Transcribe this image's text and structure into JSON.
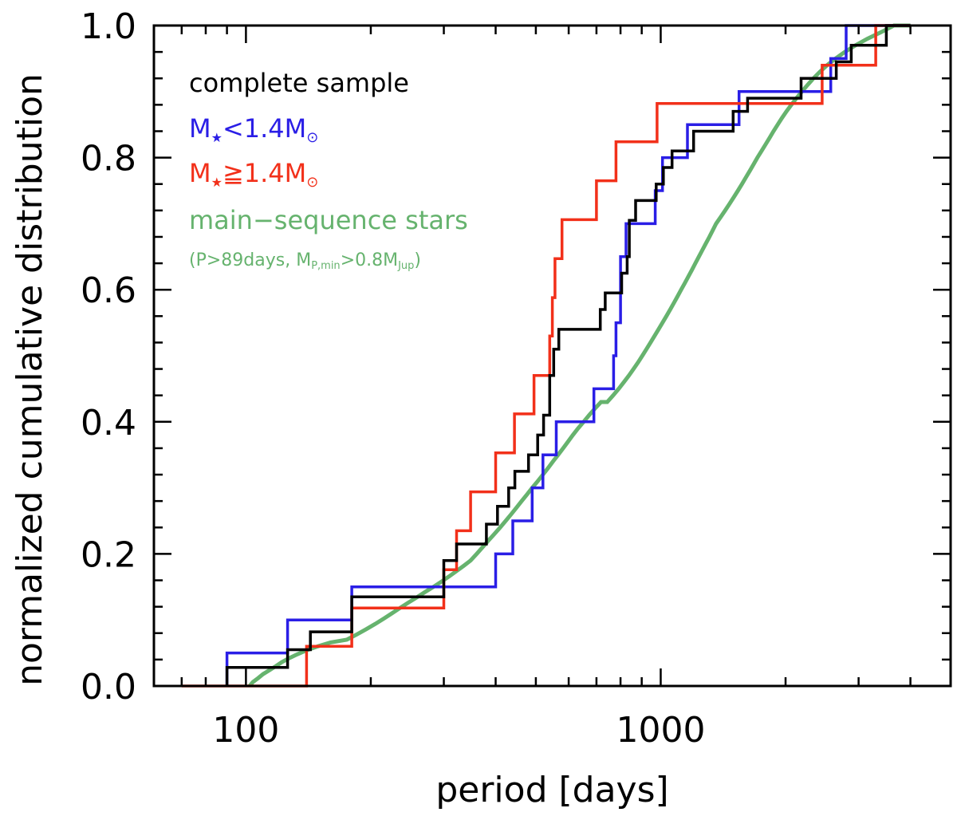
{
  "chart_data": {
    "type": "line",
    "step": true,
    "xscale": "log",
    "xlabel": "period [days]",
    "ylabel": "normalized cumulative distribution",
    "xlim": [
      60,
      5000
    ],
    "ylim": [
      0.0,
      1.0
    ],
    "x_ticks": [
      {
        "value": 100,
        "label": "100"
      },
      {
        "value": 1000,
        "label": "1000"
      }
    ],
    "y_ticks": [
      {
        "value": 0.0,
        "label": "0.0"
      },
      {
        "value": 0.2,
        "label": "0.2"
      },
      {
        "value": 0.4,
        "label": "0.4"
      },
      {
        "value": 0.6,
        "label": "0.6"
      },
      {
        "value": 0.8,
        "label": "0.8"
      },
      {
        "value": 1.0,
        "label": "1.0"
      }
    ],
    "legend": [
      {
        "key": "complete",
        "text": "complete sample",
        "color": "#000000"
      },
      {
        "key": "low_mass",
        "text": "M★<1.4M⊙",
        "color": "#2a1ee6"
      },
      {
        "key": "high_mass",
        "text": "M★≧1.4M⊙",
        "color": "#f2301a"
      },
      {
        "key": "main_seq",
        "text": "main−sequence stars",
        "color": "#66b36e"
      },
      {
        "key": "main_seq_note",
        "text": "(P>89days, M_P,min>0.8M_Jup)",
        "color": "#66b36e"
      }
    ],
    "series": [
      {
        "name": "complete sample",
        "color": "#000000",
        "width": 3.5,
        "points": [
          [
            90,
            0.0
          ],
          [
            90,
            0.028
          ],
          [
            126,
            0.028
          ],
          [
            126,
            0.055
          ],
          [
            143,
            0.055
          ],
          [
            143,
            0.082
          ],
          [
            180,
            0.082
          ],
          [
            180,
            0.135
          ],
          [
            300,
            0.135
          ],
          [
            300,
            0.19
          ],
          [
            322,
            0.19
          ],
          [
            322,
            0.215
          ],
          [
            380,
            0.215
          ],
          [
            380,
            0.245
          ],
          [
            404,
            0.245
          ],
          [
            404,
            0.272
          ],
          [
            430,
            0.272
          ],
          [
            430,
            0.3
          ],
          [
            445,
            0.3
          ],
          [
            445,
            0.325
          ],
          [
            480,
            0.325
          ],
          [
            480,
            0.35
          ],
          [
            505,
            0.35
          ],
          [
            505,
            0.38
          ],
          [
            522,
            0.38
          ],
          [
            522,
            0.41
          ],
          [
            540,
            0.41
          ],
          [
            540,
            0.47
          ],
          [
            552,
            0.47
          ],
          [
            552,
            0.51
          ],
          [
            568,
            0.51
          ],
          [
            568,
            0.54
          ],
          [
            715,
            0.54
          ],
          [
            715,
            0.57
          ],
          [
            735,
            0.57
          ],
          [
            735,
            0.595
          ],
          [
            805,
            0.595
          ],
          [
            805,
            0.625
          ],
          [
            830,
            0.625
          ],
          [
            830,
            0.65
          ],
          [
            840,
            0.65
          ],
          [
            840,
            0.705
          ],
          [
            870,
            0.705
          ],
          [
            870,
            0.735
          ],
          [
            975,
            0.735
          ],
          [
            975,
            0.76
          ],
          [
            1015,
            0.76
          ],
          [
            1015,
            0.785
          ],
          [
            1065,
            0.785
          ],
          [
            1065,
            0.81
          ],
          [
            1200,
            0.81
          ],
          [
            1200,
            0.84
          ],
          [
            1495,
            0.84
          ],
          [
            1495,
            0.87
          ],
          [
            1620,
            0.87
          ],
          [
            1620,
            0.89
          ],
          [
            2180,
            0.89
          ],
          [
            2180,
            0.92
          ],
          [
            2650,
            0.92
          ],
          [
            2650,
            0.945
          ],
          [
            2880,
            0.945
          ],
          [
            2880,
            0.97
          ],
          [
            3500,
            0.97
          ],
          [
            3500,
            1.0
          ],
          [
            4000,
            1.0
          ]
        ]
      },
      {
        "name": "M★<1.4M⊙",
        "color": "#2a1ee6",
        "width": 3.5,
        "points": [
          [
            90,
            0.0
          ],
          [
            90,
            0.05
          ],
          [
            126,
            0.05
          ],
          [
            126,
            0.1
          ],
          [
            180,
            0.1
          ],
          [
            180,
            0.15
          ],
          [
            400,
            0.15
          ],
          [
            400,
            0.2
          ],
          [
            440,
            0.2
          ],
          [
            440,
            0.25
          ],
          [
            490,
            0.25
          ],
          [
            490,
            0.3
          ],
          [
            520,
            0.3
          ],
          [
            520,
            0.35
          ],
          [
            560,
            0.35
          ],
          [
            560,
            0.4
          ],
          [
            690,
            0.4
          ],
          [
            690,
            0.45
          ],
          [
            770,
            0.45
          ],
          [
            770,
            0.5
          ],
          [
            780,
            0.5
          ],
          [
            780,
            0.55
          ],
          [
            800,
            0.55
          ],
          [
            800,
            0.65
          ],
          [
            825,
            0.65
          ],
          [
            825,
            0.7
          ],
          [
            970,
            0.7
          ],
          [
            970,
            0.75
          ],
          [
            1010,
            0.75
          ],
          [
            1010,
            0.8
          ],
          [
            1160,
            0.8
          ],
          [
            1160,
            0.85
          ],
          [
            1545,
            0.85
          ],
          [
            1545,
            0.9
          ],
          [
            2570,
            0.9
          ],
          [
            2570,
            0.95
          ],
          [
            2800,
            0.95
          ],
          [
            2800,
            1.0
          ],
          [
            4000,
            1.0
          ]
        ]
      },
      {
        "name": "M★≧1.4M⊙",
        "color": "#f2301a",
        "width": 3.5,
        "points": [
          [
            70,
            0.0
          ],
          [
            140,
            0.0
          ],
          [
            140,
            0.06
          ],
          [
            180,
            0.06
          ],
          [
            180,
            0.118
          ],
          [
            300,
            0.118
          ],
          [
            300,
            0.176
          ],
          [
            322,
            0.176
          ],
          [
            322,
            0.235
          ],
          [
            348,
            0.235
          ],
          [
            348,
            0.294
          ],
          [
            400,
            0.294
          ],
          [
            400,
            0.353
          ],
          [
            444,
            0.353
          ],
          [
            444,
            0.412
          ],
          [
            495,
            0.412
          ],
          [
            495,
            0.47
          ],
          [
            540,
            0.47
          ],
          [
            540,
            0.53
          ],
          [
            548,
            0.53
          ],
          [
            548,
            0.588
          ],
          [
            556,
            0.588
          ],
          [
            556,
            0.647
          ],
          [
            578,
            0.647
          ],
          [
            578,
            0.706
          ],
          [
            700,
            0.706
          ],
          [
            700,
            0.765
          ],
          [
            780,
            0.765
          ],
          [
            780,
            0.824
          ],
          [
            980,
            0.824
          ],
          [
            980,
            0.882
          ],
          [
            2450,
            0.882
          ],
          [
            2450,
            0.94
          ],
          [
            3300,
            0.94
          ],
          [
            3300,
            1.0
          ],
          [
            4000,
            1.0
          ]
        ]
      },
      {
        "name": "main−sequence stars",
        "color": "#66b36e",
        "width": 5,
        "points": [
          [
            102,
            0
          ],
          [
            104,
            0.006
          ],
          [
            107,
            0.012
          ],
          [
            110,
            0.018
          ],
          [
            114,
            0.024
          ],
          [
            118,
            0.03
          ],
          [
            122,
            0.036
          ],
          [
            127,
            0.042
          ],
          [
            133,
            0.048
          ],
          [
            140,
            0.054
          ],
          [
            149,
            0.06
          ],
          [
            160,
            0.066
          ],
          [
            175,
            0.07
          ],
          [
            185,
            0.078
          ],
          [
            195,
            0.086
          ],
          [
            205,
            0.094
          ],
          [
            215,
            0.102
          ],
          [
            225,
            0.11
          ],
          [
            235,
            0.118
          ],
          [
            246,
            0.126
          ],
          [
            258,
            0.134
          ],
          [
            270,
            0.142
          ],
          [
            283,
            0.15
          ],
          [
            296,
            0.158
          ],
          [
            309,
            0.166
          ],
          [
            322,
            0.174
          ],
          [
            335,
            0.182
          ],
          [
            348,
            0.19
          ],
          [
            360,
            0.2
          ],
          [
            372,
            0.21
          ],
          [
            384,
            0.22
          ],
          [
            397,
            0.23
          ],
          [
            410,
            0.24
          ],
          [
            423,
            0.25
          ],
          [
            436,
            0.26
          ],
          [
            449,
            0.27
          ],
          [
            462,
            0.28
          ],
          [
            476,
            0.29
          ],
          [
            490,
            0.3
          ],
          [
            505,
            0.31
          ],
          [
            520,
            0.32
          ],
          [
            535,
            0.33
          ],
          [
            550,
            0.34
          ],
          [
            566,
            0.35
          ],
          [
            582,
            0.36
          ],
          [
            598,
            0.37
          ],
          [
            614,
            0.38
          ],
          [
            632,
            0.39
          ],
          [
            652,
            0.4
          ],
          [
            672,
            0.41
          ],
          [
            694,
            0.42
          ],
          [
            718,
            0.43
          ],
          [
            743,
            0.43
          ],
          [
            768,
            0.44
          ],
          [
            792,
            0.45
          ],
          [
            815,
            0.46
          ],
          [
            838,
            0.47
          ],
          [
            860,
            0.48
          ],
          [
            882,
            0.49
          ],
          [
            903,
            0.5
          ],
          [
            924,
            0.51
          ],
          [
            945,
            0.52
          ],
          [
            966,
            0.53
          ],
          [
            988,
            0.54
          ],
          [
            1010,
            0.55
          ],
          [
            1032,
            0.56
          ],
          [
            1054,
            0.57
          ],
          [
            1076,
            0.58
          ],
          [
            1098,
            0.59
          ],
          [
            1120,
            0.6
          ],
          [
            1143,
            0.61
          ],
          [
            1166,
            0.62
          ],
          [
            1189,
            0.63
          ],
          [
            1212,
            0.64
          ],
          [
            1236,
            0.65
          ],
          [
            1260,
            0.66
          ],
          [
            1285,
            0.67
          ],
          [
            1310,
            0.68
          ],
          [
            1335,
            0.69
          ],
          [
            1360,
            0.7
          ],
          [
            1395,
            0.71
          ],
          [
            1430,
            0.72
          ],
          [
            1465,
            0.73
          ],
          [
            1500,
            0.74
          ],
          [
            1535,
            0.75
          ],
          [
            1570,
            0.76
          ],
          [
            1605,
            0.77
          ],
          [
            1640,
            0.78
          ],
          [
            1675,
            0.79
          ],
          [
            1710,
            0.8
          ],
          [
            1750,
            0.81
          ],
          [
            1790,
            0.82
          ],
          [
            1830,
            0.83
          ],
          [
            1870,
            0.84
          ],
          [
            1915,
            0.85
          ],
          [
            1960,
            0.86
          ],
          [
            2010,
            0.87
          ],
          [
            2065,
            0.88
          ],
          [
            2125,
            0.89
          ],
          [
            2190,
            0.9
          ],
          [
            2260,
            0.91
          ],
          [
            2335,
            0.92
          ],
          [
            2420,
            0.93
          ],
          [
            2520,
            0.94
          ],
          [
            2640,
            0.95
          ],
          [
            2780,
            0.96
          ],
          [
            2950,
            0.97
          ],
          [
            3150,
            0.98
          ],
          [
            3400,
            0.99
          ],
          [
            3650,
            1.0
          ],
          [
            4000,
            1.0
          ]
        ]
      }
    ]
  }
}
